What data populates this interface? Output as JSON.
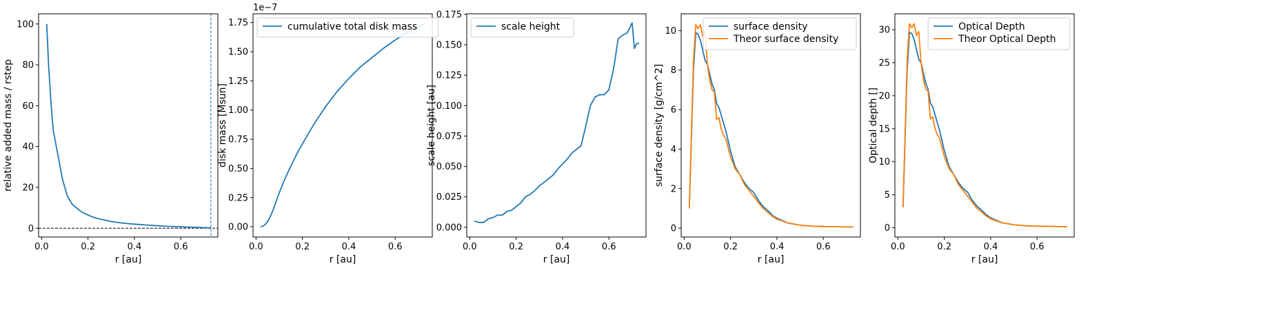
{
  "colors": {
    "blue": "#1f77b4",
    "orange": "#ff7f0e"
  },
  "chart_data": [
    {
      "type": "line",
      "xlabel": "r [au]",
      "ylabel": "relative added mass / rstep",
      "xlim": [
        -0.013,
        0.76
      ],
      "ylim": [
        -4.3,
        105
      ],
      "xticks": [
        0.0,
        0.2,
        0.4,
        0.6
      ],
      "xtick_labels": [
        "0.0",
        "0.2",
        "0.4",
        "0.6"
      ],
      "yticks": [
        0,
        20,
        40,
        60,
        80,
        100
      ],
      "ytick_labels": [
        "0",
        "20",
        "40",
        "60",
        "80",
        "100"
      ],
      "legend": "none",
      "hline": {
        "y": 0,
        "style": "dashed",
        "color": "#000000"
      },
      "vline": {
        "x": 0.73,
        "style": "dashed",
        "color": "#1f77b4"
      },
      "series": [
        {
          "color": "#1f77b4",
          "x": [
            0.022,
            0.03,
            0.04,
            0.05,
            0.06,
            0.07,
            0.08,
            0.09,
            0.1,
            0.11,
            0.12,
            0.13,
            0.14,
            0.15,
            0.16,
            0.18,
            0.2,
            0.22,
            0.25,
            0.28,
            0.3,
            0.33,
            0.36,
            0.4,
            0.45,
            0.5,
            0.55,
            0.6,
            0.65,
            0.7,
            0.73
          ],
          "y": [
            100,
            80,
            62,
            48,
            42,
            36,
            30,
            24,
            20,
            16,
            14,
            12,
            11,
            10,
            9,
            7.5,
            6.5,
            5.5,
            4.5,
            3.8,
            3.3,
            2.8,
            2.4,
            2.0,
            1.6,
            1.2,
            0.9,
            0.7,
            0.5,
            0.3,
            0.2
          ]
        }
      ]
    },
    {
      "type": "line",
      "xlabel": "r [au]",
      "ylabel": "disk mass [Msun]",
      "offset_label": "1e−7",
      "xlim": [
        -0.013,
        0.76
      ],
      "ylim": [
        -0.088,
        1.825
      ],
      "xticks": [
        0.0,
        0.2,
        0.4,
        0.6
      ],
      "xtick_labels": [
        "0.0",
        "0.2",
        "0.4",
        "0.6"
      ],
      "yticks": [
        0,
        0.25,
        0.5,
        0.75,
        1.0,
        1.25,
        1.5,
        1.75
      ],
      "ytick_labels": [
        "0.00",
        "0.25",
        "0.50",
        "0.75",
        "1.00",
        "1.25",
        "1.50",
        "1.75"
      ],
      "legend": "upper left",
      "series": [
        {
          "name": "cumulative total disk mass",
          "color": "#1f77b4",
          "x": [
            0.02,
            0.03,
            0.04,
            0.05,
            0.06,
            0.07,
            0.08,
            0.1,
            0.12,
            0.15,
            0.18,
            0.2,
            0.25,
            0.3,
            0.35,
            0.4,
            0.45,
            0.5,
            0.55,
            0.6,
            0.65,
            0.7,
            0.73
          ],
          "y": [
            0,
            0.005,
            0.02,
            0.045,
            0.08,
            0.125,
            0.18,
            0.29,
            0.39,
            0.52,
            0.64,
            0.71,
            0.88,
            1.03,
            1.16,
            1.27,
            1.37,
            1.45,
            1.53,
            1.6,
            1.66,
            1.71,
            1.74
          ]
        }
      ]
    },
    {
      "type": "line",
      "xlabel": "r [au]",
      "ylabel": "scale height [au]",
      "xlim": [
        -0.013,
        0.76
      ],
      "ylim": [
        -0.008,
        0.1755
      ],
      "xticks": [
        0.0,
        0.2,
        0.4,
        0.6
      ],
      "xtick_labels": [
        "0.0",
        "0.2",
        "0.4",
        "0.6"
      ],
      "yticks": [
        0,
        0.025,
        0.05,
        0.075,
        0.1,
        0.125,
        0.15,
        0.175
      ],
      "ytick_labels": [
        "0.000",
        "0.025",
        "0.050",
        "0.075",
        "0.100",
        "0.125",
        "0.150",
        "0.175"
      ],
      "legend": "upper left",
      "series": [
        {
          "name": "scale height",
          "color": "#1f77b4",
          "x": [
            0.02,
            0.04,
            0.06,
            0.08,
            0.1,
            0.12,
            0.14,
            0.16,
            0.18,
            0.2,
            0.22,
            0.24,
            0.26,
            0.28,
            0.3,
            0.32,
            0.34,
            0.36,
            0.38,
            0.4,
            0.42,
            0.44,
            0.46,
            0.48,
            0.5,
            0.52,
            0.54,
            0.56,
            0.58,
            0.6,
            0.62,
            0.64,
            0.66,
            0.68,
            0.7,
            0.71,
            0.72,
            0.73
          ],
          "y": [
            0.005,
            0.004,
            0.004,
            0.007,
            0.008,
            0.01,
            0.01,
            0.013,
            0.014,
            0.017,
            0.02,
            0.025,
            0.027,
            0.03,
            0.034,
            0.037,
            0.04,
            0.043,
            0.048,
            0.052,
            0.056,
            0.061,
            0.064,
            0.067,
            0.083,
            0.1,
            0.107,
            0.109,
            0.109,
            0.113,
            0.13,
            0.155,
            0.158,
            0.16,
            0.168,
            0.147,
            0.151,
            0.151
          ]
        }
      ]
    },
    {
      "type": "line",
      "xlabel": "r [au]",
      "ylabel": "surface density [g/cm^2]",
      "xlim": [
        -0.013,
        0.76
      ],
      "ylim": [
        -0.45,
        10.85
      ],
      "xticks": [
        0.0,
        0.2,
        0.4,
        0.6
      ],
      "xtick_labels": [
        "0.0",
        "0.2",
        "0.4",
        "0.6"
      ],
      "yticks": [
        0,
        2,
        4,
        6,
        8,
        10
      ],
      "ytick_labels": [
        "0",
        "2",
        "4",
        "6",
        "8",
        "10"
      ],
      "legend": "upper right",
      "series": [
        {
          "name": "surface density",
          "color": "#1f77b4",
          "x": [
            0.022,
            0.04,
            0.05,
            0.06,
            0.07,
            0.08,
            0.09,
            0.1,
            0.11,
            0.12,
            0.13,
            0.14,
            0.15,
            0.16,
            0.17,
            0.18,
            0.2,
            0.22,
            0.24,
            0.26,
            0.28,
            0.3,
            0.32,
            0.34,
            0.36,
            0.38,
            0.4,
            0.45,
            0.5,
            0.55,
            0.6,
            0.65,
            0.7,
            0.73
          ],
          "y": [
            1.0,
            8.0,
            9.9,
            9.8,
            9.5,
            9.0,
            8.5,
            8.3,
            7.8,
            7.3,
            7.0,
            6.3,
            6.1,
            5.7,
            5.3,
            4.9,
            3.9,
            3.1,
            2.7,
            2.3,
            2.0,
            1.8,
            1.4,
            1.1,
            0.9,
            0.65,
            0.5,
            0.25,
            0.15,
            0.1,
            0.08,
            0.07,
            0.06,
            0.06
          ]
        },
        {
          "name": "Theor surface density",
          "color": "#ff7f0e",
          "x": [
            0.022,
            0.04,
            0.05,
            0.06,
            0.07,
            0.08,
            0.09,
            0.1,
            0.11,
            0.12,
            0.13,
            0.14,
            0.15,
            0.16,
            0.17,
            0.18,
            0.2,
            0.22,
            0.24,
            0.26,
            0.28,
            0.3,
            0.32,
            0.34,
            0.36,
            0.38,
            0.4,
            0.45,
            0.5,
            0.55,
            0.6,
            0.65,
            0.7,
            0.73
          ],
          "y": [
            1.0,
            8.5,
            10.3,
            10.1,
            10.3,
            9.7,
            9.9,
            8.3,
            7.5,
            7.0,
            6.9,
            5.5,
            5.6,
            5.0,
            4.7,
            4.5,
            3.6,
            3.0,
            2.7,
            2.2,
            1.9,
            1.6,
            1.3,
            1.0,
            0.8,
            0.6,
            0.45,
            0.25,
            0.15,
            0.1,
            0.08,
            0.07,
            0.06,
            0.06
          ]
        }
      ]
    },
    {
      "type": "line",
      "xlabel": "r [au]",
      "ylabel": "Optical depth []",
      "xlim": [
        -0.013,
        0.76
      ],
      "ylim": [
        -1.4,
        32.4
      ],
      "xticks": [
        0.0,
        0.2,
        0.4,
        0.6
      ],
      "xtick_labels": [
        "0.0",
        "0.2",
        "0.4",
        "0.6"
      ],
      "yticks": [
        0,
        5,
        10,
        15,
        20,
        25,
        30
      ],
      "ytick_labels": [
        "0",
        "5",
        "10",
        "15",
        "20",
        "25",
        "30"
      ],
      "legend": "upper right",
      "series": [
        {
          "name": "Optical Depth",
          "color": "#1f77b4",
          "x": [
            0.022,
            0.04,
            0.05,
            0.06,
            0.07,
            0.08,
            0.09,
            0.1,
            0.11,
            0.12,
            0.13,
            0.14,
            0.15,
            0.16,
            0.17,
            0.18,
            0.2,
            0.22,
            0.24,
            0.26,
            0.28,
            0.3,
            0.32,
            0.34,
            0.36,
            0.38,
            0.4,
            0.45,
            0.5,
            0.55,
            0.6,
            0.65,
            0.7,
            0.73
          ],
          "y": [
            3.1,
            24,
            29.6,
            29.4,
            28.5,
            27,
            25.5,
            25,
            23.4,
            21.9,
            21,
            18.9,
            18.3,
            17.1,
            15.9,
            14.7,
            11.7,
            9.3,
            8.1,
            6.9,
            6,
            5.4,
            4.2,
            3.3,
            2.7,
            2,
            1.5,
            0.75,
            0.45,
            0.3,
            0.24,
            0.21,
            0.18,
            0.18
          ]
        },
        {
          "name": "Theor Optical Depth",
          "color": "#ff7f0e",
          "x": [
            0.022,
            0.04,
            0.05,
            0.06,
            0.07,
            0.08,
            0.09,
            0.1,
            0.11,
            0.12,
            0.13,
            0.14,
            0.15,
            0.16,
            0.17,
            0.18,
            0.2,
            0.22,
            0.24,
            0.26,
            0.28,
            0.3,
            0.32,
            0.34,
            0.36,
            0.38,
            0.4,
            0.45,
            0.5,
            0.55,
            0.6,
            0.65,
            0.7,
            0.73
          ],
          "y": [
            3.1,
            25.5,
            30.9,
            30.3,
            30.9,
            29.1,
            29.7,
            24.9,
            22.5,
            21,
            20.7,
            16.5,
            16.8,
            15,
            14.1,
            13.5,
            10.8,
            9,
            8.1,
            6.6,
            5.7,
            4.8,
            3.9,
            3,
            2.4,
            1.8,
            1.35,
            0.75,
            0.45,
            0.3,
            0.24,
            0.21,
            0.18,
            0.18
          ]
        }
      ]
    }
  ]
}
